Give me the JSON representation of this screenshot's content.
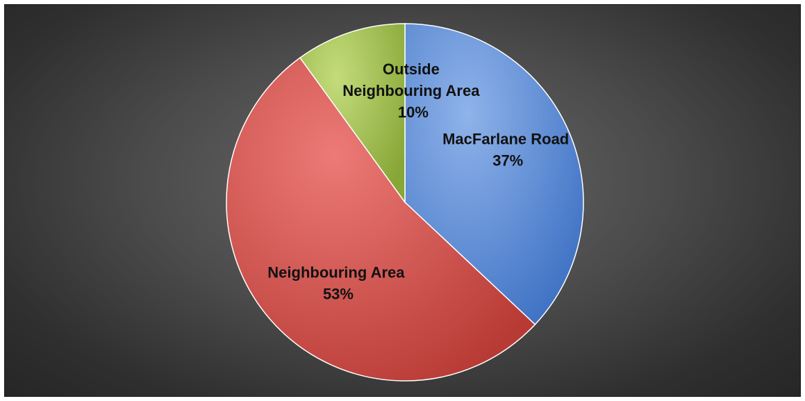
{
  "chart_data": {
    "type": "pie",
    "title": "",
    "start_angle_deg": 0,
    "direction": "clockwise",
    "slices": [
      {
        "label": "MacFarlane Road",
        "percent_label": "37%",
        "value": 37,
        "color": "#5b8ed8"
      },
      {
        "label": "Neighbouring Area",
        "percent_label": "53%",
        "value": 53,
        "color": "#d9534f"
      },
      {
        "label": "Outside Neighbouring Area",
        "percent_label": "10%",
        "value": 10,
        "color": "#a3c24e"
      }
    ],
    "legend": "none"
  }
}
